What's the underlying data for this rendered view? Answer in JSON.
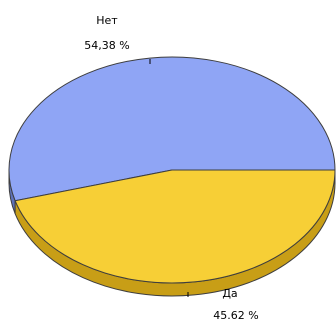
{
  "chart_data": {
    "type": "pie",
    "style": "3d",
    "categories": [
      "Нет",
      "Да"
    ],
    "values": [
      54.38,
      45.62
    ],
    "labels": [
      {
        "category": "Нет",
        "value_text": "54,38 %"
      },
      {
        "category": "Да",
        "value_text": "45.62 %"
      }
    ],
    "colors": {
      "Нет": "#8FA5F5",
      "Да": "#F7CF36",
      "Нет_side": "#5E71B9",
      "Да_side": "#C89E16",
      "outline": "#3E3E3E"
    },
    "legend": "none",
    "grid": false
  }
}
